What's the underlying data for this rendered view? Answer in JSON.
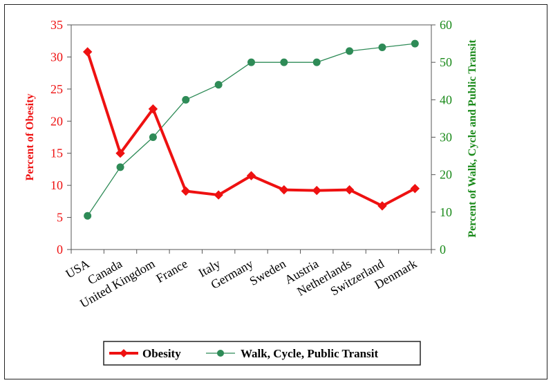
{
  "chart_data": {
    "type": "line",
    "categories": [
      "USA",
      "Canada",
      "United Kingdom",
      "France",
      "Italy",
      "Germany",
      "Sweden",
      "Austria",
      "Netherlands",
      "Switzerland",
      "Denmark"
    ],
    "series": [
      {
        "name": "Obesity",
        "axis": "left",
        "color": "#ee1111",
        "values": [
          30.8,
          15.0,
          21.9,
          9.1,
          8.5,
          11.5,
          9.3,
          9.2,
          9.3,
          6.8,
          9.5
        ]
      },
      {
        "name": "Walk, Cycle, Public Transit",
        "axis": "right",
        "color": "#2e8b57",
        "values": [
          9,
          22,
          30,
          40,
          44,
          50,
          50,
          50,
          53,
          54,
          55
        ]
      }
    ],
    "ylabel_left": "Percent of Obesity",
    "ylabel_right": "Percent of Walk, Cycle and Public Transit",
    "ylim_left": [
      0,
      35
    ],
    "ylim_right": [
      0,
      60
    ],
    "yticks_left": [
      0,
      5,
      10,
      15,
      20,
      25,
      30,
      35
    ],
    "yticks_right": [
      0,
      10,
      20,
      30,
      40,
      50,
      60
    ],
    "left_axis_color": "#ee1111",
    "right_axis_color": "#1a8a1a",
    "legend_position": "bottom"
  }
}
